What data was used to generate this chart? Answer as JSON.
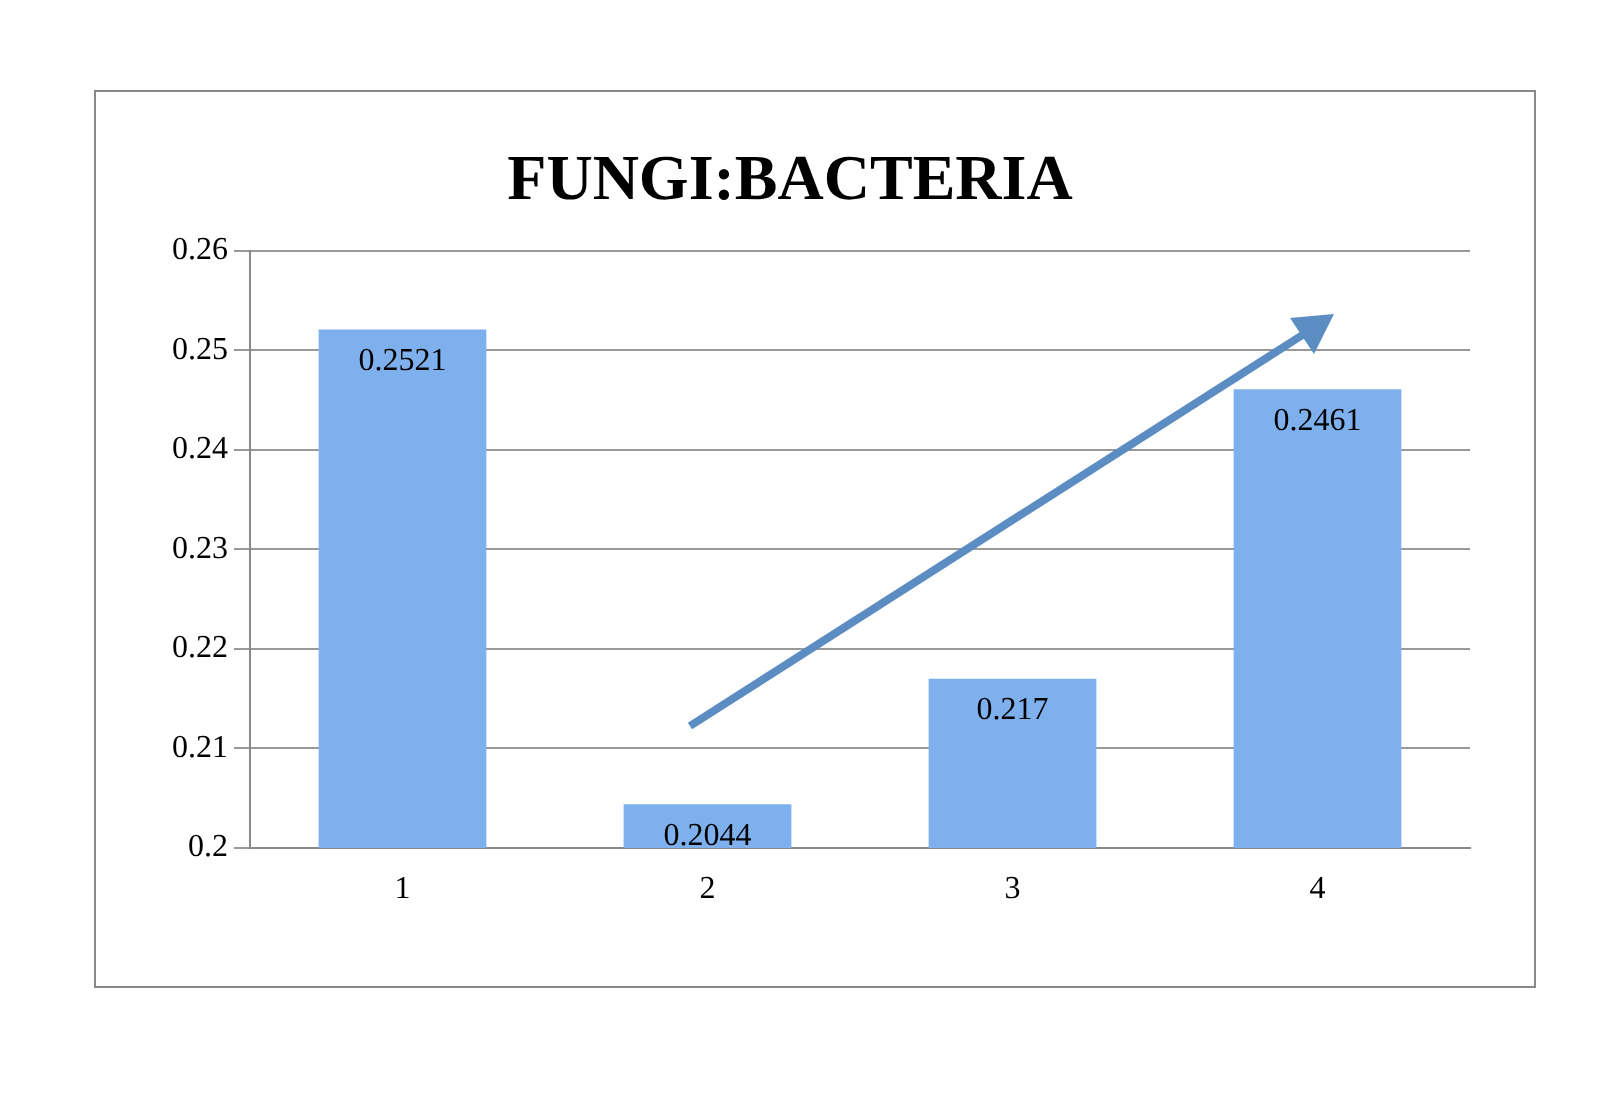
{
  "chart_data": {
    "type": "bar",
    "title": "FUNGI:BACTERIA",
    "categories": [
      "1",
      "2",
      "3",
      "4"
    ],
    "values": [
      0.2521,
      0.2044,
      0.217,
      0.2461
    ],
    "color": "#7fb0ee",
    "ylim": [
      0.2,
      0.26
    ],
    "yticks": [
      0.2,
      0.21,
      0.22,
      0.23,
      0.24,
      0.25,
      0.26
    ],
    "grid": "y",
    "legend": false,
    "data_labels": true
  }
}
